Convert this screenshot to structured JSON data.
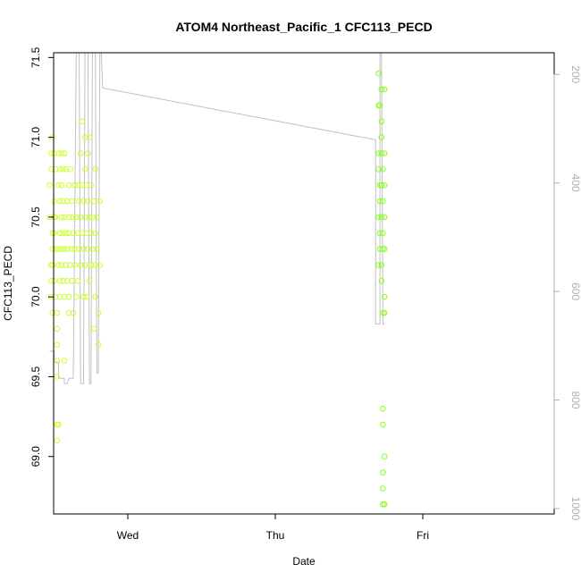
{
  "chart_data": {
    "type": "scatter",
    "title": "ATOM4 Northeast_Pacific_1 CFC113_PECD",
    "xlabel": "Date",
    "ylabel": "CFC113_PECD",
    "x_ticks": [
      "Wed",
      "Thu",
      "Fri"
    ],
    "ylim": [
      68.64,
      71.53
    ],
    "y_ticks": [
      "69.0",
      "69.5",
      "70.0",
      "70.5",
      "71.0",
      "71.5"
    ],
    "y2_ticks": [
      "200",
      "400",
      "600",
      "800",
      "1000"
    ],
    "y2lim": [
      1010,
      160
    ],
    "grid": false,
    "colors": {
      "points_left": "#ccff33",
      "points_right": "#88ff22",
      "depth_line": "#c0c0c0"
    },
    "series": [
      {
        "values": [
          {
            "x": 0.47,
            "y": 70.7
          },
          {
            "x": 0.47,
            "y": 70.5
          },
          {
            "x": 0.48,
            "y": 70.9
          },
          {
            "x": 0.48,
            "y": 70.8
          },
          {
            "x": 0.48,
            "y": 70.2
          },
          {
            "x": 0.48,
            "y": 70.1
          },
          {
            "x": 0.48,
            "y": 70.0
          },
          {
            "x": 0.49,
            "y": 69.9
          },
          {
            "x": 0.49,
            "y": 71.0
          },
          {
            "x": 0.49,
            "y": 70.4
          },
          {
            "x": 0.49,
            "y": 70.3
          },
          {
            "x": 0.49,
            "y": 70.2
          },
          {
            "x": 0.5,
            "y": 70.9
          },
          {
            "x": 0.5,
            "y": 70.6
          },
          {
            "x": 0.5,
            "y": 70.5
          },
          {
            "x": 0.5,
            "y": 70.4
          },
          {
            "x": 0.5,
            "y": 70.1
          },
          {
            "x": 0.51,
            "y": 70.8
          },
          {
            "x": 0.51,
            "y": 70.5
          },
          {
            "x": 0.51,
            "y": 70.3
          },
          {
            "x": 0.51,
            "y": 70.0
          },
          {
            "x": 0.52,
            "y": 69.9
          },
          {
            "x": 0.52,
            "y": 69.8
          },
          {
            "x": 0.52,
            "y": 69.7
          },
          {
            "x": 0.52,
            "y": 69.6
          },
          {
            "x": 0.52,
            "y": 69.5
          },
          {
            "x": 0.52,
            "y": 69.2
          },
          {
            "x": 0.52,
            "y": 69.1
          },
          {
            "x": 0.53,
            "y": 70.9
          },
          {
            "x": 0.53,
            "y": 70.7
          },
          {
            "x": 0.53,
            "y": 70.3
          },
          {
            "x": 0.53,
            "y": 70.2
          },
          {
            "x": 0.53,
            "y": 69.2
          },
          {
            "x": 0.54,
            "y": 70.8
          },
          {
            "x": 0.54,
            "y": 70.6
          },
          {
            "x": 0.54,
            "y": 70.4
          },
          {
            "x": 0.54,
            "y": 70.1
          },
          {
            "x": 0.54,
            "y": 70.0
          },
          {
            "x": 0.55,
            "y": 70.9
          },
          {
            "x": 0.55,
            "y": 70.7
          },
          {
            "x": 0.55,
            "y": 70.5
          },
          {
            "x": 0.55,
            "y": 70.3
          },
          {
            "x": 0.55,
            "y": 70.2
          },
          {
            "x": 0.56,
            "y": 70.8
          },
          {
            "x": 0.56,
            "y": 70.6
          },
          {
            "x": 0.56,
            "y": 70.4
          },
          {
            "x": 0.56,
            "y": 70.1
          },
          {
            "x": 0.57,
            "y": 70.9
          },
          {
            "x": 0.57,
            "y": 70.5
          },
          {
            "x": 0.57,
            "y": 70.3
          },
          {
            "x": 0.57,
            "y": 70.0
          },
          {
            "x": 0.57,
            "y": 69.6
          },
          {
            "x": 0.58,
            "y": 70.8
          },
          {
            "x": 0.58,
            "y": 70.4
          },
          {
            "x": 0.58,
            "y": 70.2
          },
          {
            "x": 0.59,
            "y": 70.6
          },
          {
            "x": 0.59,
            "y": 70.3
          },
          {
            "x": 0.59,
            "y": 70.1
          },
          {
            "x": 0.6,
            "y": 70.7
          },
          {
            "x": 0.6,
            "y": 70.5
          },
          {
            "x": 0.6,
            "y": 70.4
          },
          {
            "x": 0.6,
            "y": 70.0
          },
          {
            "x": 0.6,
            "y": 69.9
          },
          {
            "x": 0.61,
            "y": 70.8
          },
          {
            "x": 0.61,
            "y": 70.2
          },
          {
            "x": 0.62,
            "y": 70.6
          },
          {
            "x": 0.62,
            "y": 70.3
          },
          {
            "x": 0.62,
            "y": 70.1
          },
          {
            "x": 0.63,
            "y": 70.5
          },
          {
            "x": 0.63,
            "y": 70.4
          },
          {
            "x": 0.63,
            "y": 69.9
          },
          {
            "x": 0.64,
            "y": 70.7
          },
          {
            "x": 0.64,
            "y": 70.3
          },
          {
            "x": 0.64,
            "y": 70.2
          },
          {
            "x": 0.65,
            "y": 70.5
          },
          {
            "x": 0.65,
            "y": 70.0
          },
          {
            "x": 0.66,
            "y": 70.7
          },
          {
            "x": 0.66,
            "y": 70.4
          },
          {
            "x": 0.66,
            "y": 70.1
          },
          {
            "x": 0.67,
            "y": 70.3
          },
          {
            "x": 0.67,
            "y": 70.6
          },
          {
            "x": 0.68,
            "y": 70.9
          },
          {
            "x": 0.68,
            "y": 70.5
          },
          {
            "x": 0.68,
            "y": 70.2
          },
          {
            "x": 0.69,
            "y": 71.1
          },
          {
            "x": 0.69,
            "y": 70.7
          },
          {
            "x": 0.69,
            "y": 70.4
          },
          {
            "x": 0.7,
            "y": 70.6
          },
          {
            "x": 0.7,
            "y": 70.3
          },
          {
            "x": 0.7,
            "y": 70.0
          },
          {
            "x": 0.71,
            "y": 71.0
          },
          {
            "x": 0.71,
            "y": 70.8
          },
          {
            "x": 0.71,
            "y": 70.5
          },
          {
            "x": 0.71,
            "y": 70.2
          },
          {
            "x": 0.72,
            "y": 70.7
          },
          {
            "x": 0.72,
            "y": 70.4
          },
          {
            "x": 0.72,
            "y": 70.0
          },
          {
            "x": 0.73,
            "y": 70.9
          },
          {
            "x": 0.73,
            "y": 70.6
          },
          {
            "x": 0.73,
            "y": 70.3
          },
          {
            "x": 0.74,
            "y": 71.0
          },
          {
            "x": 0.74,
            "y": 70.5
          },
          {
            "x": 0.74,
            "y": 70.1
          },
          {
            "x": 0.75,
            "y": 70.7
          },
          {
            "x": 0.75,
            "y": 70.4
          },
          {
            "x": 0.75,
            "y": 70.2
          },
          {
            "x": 0.76,
            "y": 70.5
          },
          {
            "x": 0.76,
            "y": 70.3
          },
          {
            "x": 0.77,
            "y": 69.8
          },
          {
            "x": 0.77,
            "y": 70.6
          },
          {
            "x": 0.77,
            "y": 70.2
          },
          {
            "x": 0.78,
            "y": 70.8
          },
          {
            "x": 0.78,
            "y": 70.4
          },
          {
            "x": 0.78,
            "y": 70.0
          },
          {
            "x": 0.79,
            "y": 70.5
          },
          {
            "x": 0.79,
            "y": 70.3
          },
          {
            "x": 0.8,
            "y": 69.9
          },
          {
            "x": 0.8,
            "y": 69.7
          },
          {
            "x": 0.81,
            "y": 70.6
          },
          {
            "x": 0.81,
            "y": 70.2
          }
        ]
      },
      {
        "values": [
          {
            "x": 2.7,
            "y": 71.4
          },
          {
            "x": 2.7,
            "y": 71.2
          },
          {
            "x": 2.7,
            "y": 70.9
          },
          {
            "x": 2.7,
            "y": 70.8
          },
          {
            "x": 2.7,
            "y": 70.5
          },
          {
            "x": 2.7,
            "y": 70.2
          },
          {
            "x": 2.71,
            "y": 71.2
          },
          {
            "x": 2.71,
            "y": 70.7
          },
          {
            "x": 2.71,
            "y": 70.6
          },
          {
            "x": 2.71,
            "y": 70.4
          },
          {
            "x": 2.71,
            "y": 70.3
          },
          {
            "x": 2.72,
            "y": 71.3
          },
          {
            "x": 2.72,
            "y": 71.1
          },
          {
            "x": 2.72,
            "y": 71.0
          },
          {
            "x": 2.72,
            "y": 70.9
          },
          {
            "x": 2.72,
            "y": 70.7
          },
          {
            "x": 2.72,
            "y": 70.5
          },
          {
            "x": 2.72,
            "y": 70.2
          },
          {
            "x": 2.72,
            "y": 70.1
          },
          {
            "x": 2.73,
            "y": 70.8
          },
          {
            "x": 2.73,
            "y": 70.6
          },
          {
            "x": 2.73,
            "y": 70.4
          },
          {
            "x": 2.73,
            "y": 70.3
          },
          {
            "x": 2.73,
            "y": 69.9
          },
          {
            "x": 2.73,
            "y": 69.3
          },
          {
            "x": 2.73,
            "y": 69.2
          },
          {
            "x": 2.73,
            "y": 68.9
          },
          {
            "x": 2.73,
            "y": 68.8
          },
          {
            "x": 2.73,
            "y": 68.7
          },
          {
            "x": 2.74,
            "y": 71.3
          },
          {
            "x": 2.74,
            "y": 70.9
          },
          {
            "x": 2.74,
            "y": 70.7
          },
          {
            "x": 2.74,
            "y": 70.5
          },
          {
            "x": 2.74,
            "y": 70.3
          },
          {
            "x": 2.74,
            "y": 70.0
          },
          {
            "x": 2.74,
            "y": 69.9
          },
          {
            "x": 2.74,
            "y": 69.0
          },
          {
            "x": 2.74,
            "y": 68.7
          }
        ]
      }
    ],
    "depth_profile": [
      {
        "x": 0.47,
        "d": 710
      },
      {
        "x": 0.5,
        "d": 710
      },
      {
        "x": 0.5,
        "d": 730
      },
      {
        "x": 0.53,
        "d": 730
      },
      {
        "x": 0.53,
        "d": 760
      },
      {
        "x": 0.57,
        "d": 760
      },
      {
        "x": 0.57,
        "d": 770
      },
      {
        "x": 0.59,
        "d": 770
      },
      {
        "x": 0.6,
        "d": 760
      },
      {
        "x": 0.63,
        "d": 760
      },
      {
        "x": 0.65,
        "d": 100
      },
      {
        "x": 0.67,
        "d": 100
      },
      {
        "x": 0.68,
        "d": 770
      },
      {
        "x": 0.7,
        "d": 770
      },
      {
        "x": 0.71,
        "d": 100
      },
      {
        "x": 0.73,
        "d": 100
      },
      {
        "x": 0.74,
        "d": 770
      },
      {
        "x": 0.75,
        "d": 770
      },
      {
        "x": 0.76,
        "d": 100
      },
      {
        "x": 0.78,
        "d": 100
      },
      {
        "x": 0.79,
        "d": 750
      },
      {
        "x": 0.8,
        "d": 750
      },
      {
        "x": 0.81,
        "d": 100
      },
      {
        "x": 0.82,
        "d": 100
      },
      {
        "x": 0.83,
        "d": 225
      },
      {
        "x": 2.67,
        "d": 320
      },
      {
        "x": 2.68,
        "d": 320
      },
      {
        "x": 2.68,
        "d": 660
      },
      {
        "x": 2.71,
        "d": 660
      },
      {
        "x": 2.71,
        "d": 100
      },
      {
        "x": 2.72,
        "d": 100
      },
      {
        "x": 2.73,
        "d": 660
      },
      {
        "x": 2.74,
        "d": 660
      }
    ]
  }
}
